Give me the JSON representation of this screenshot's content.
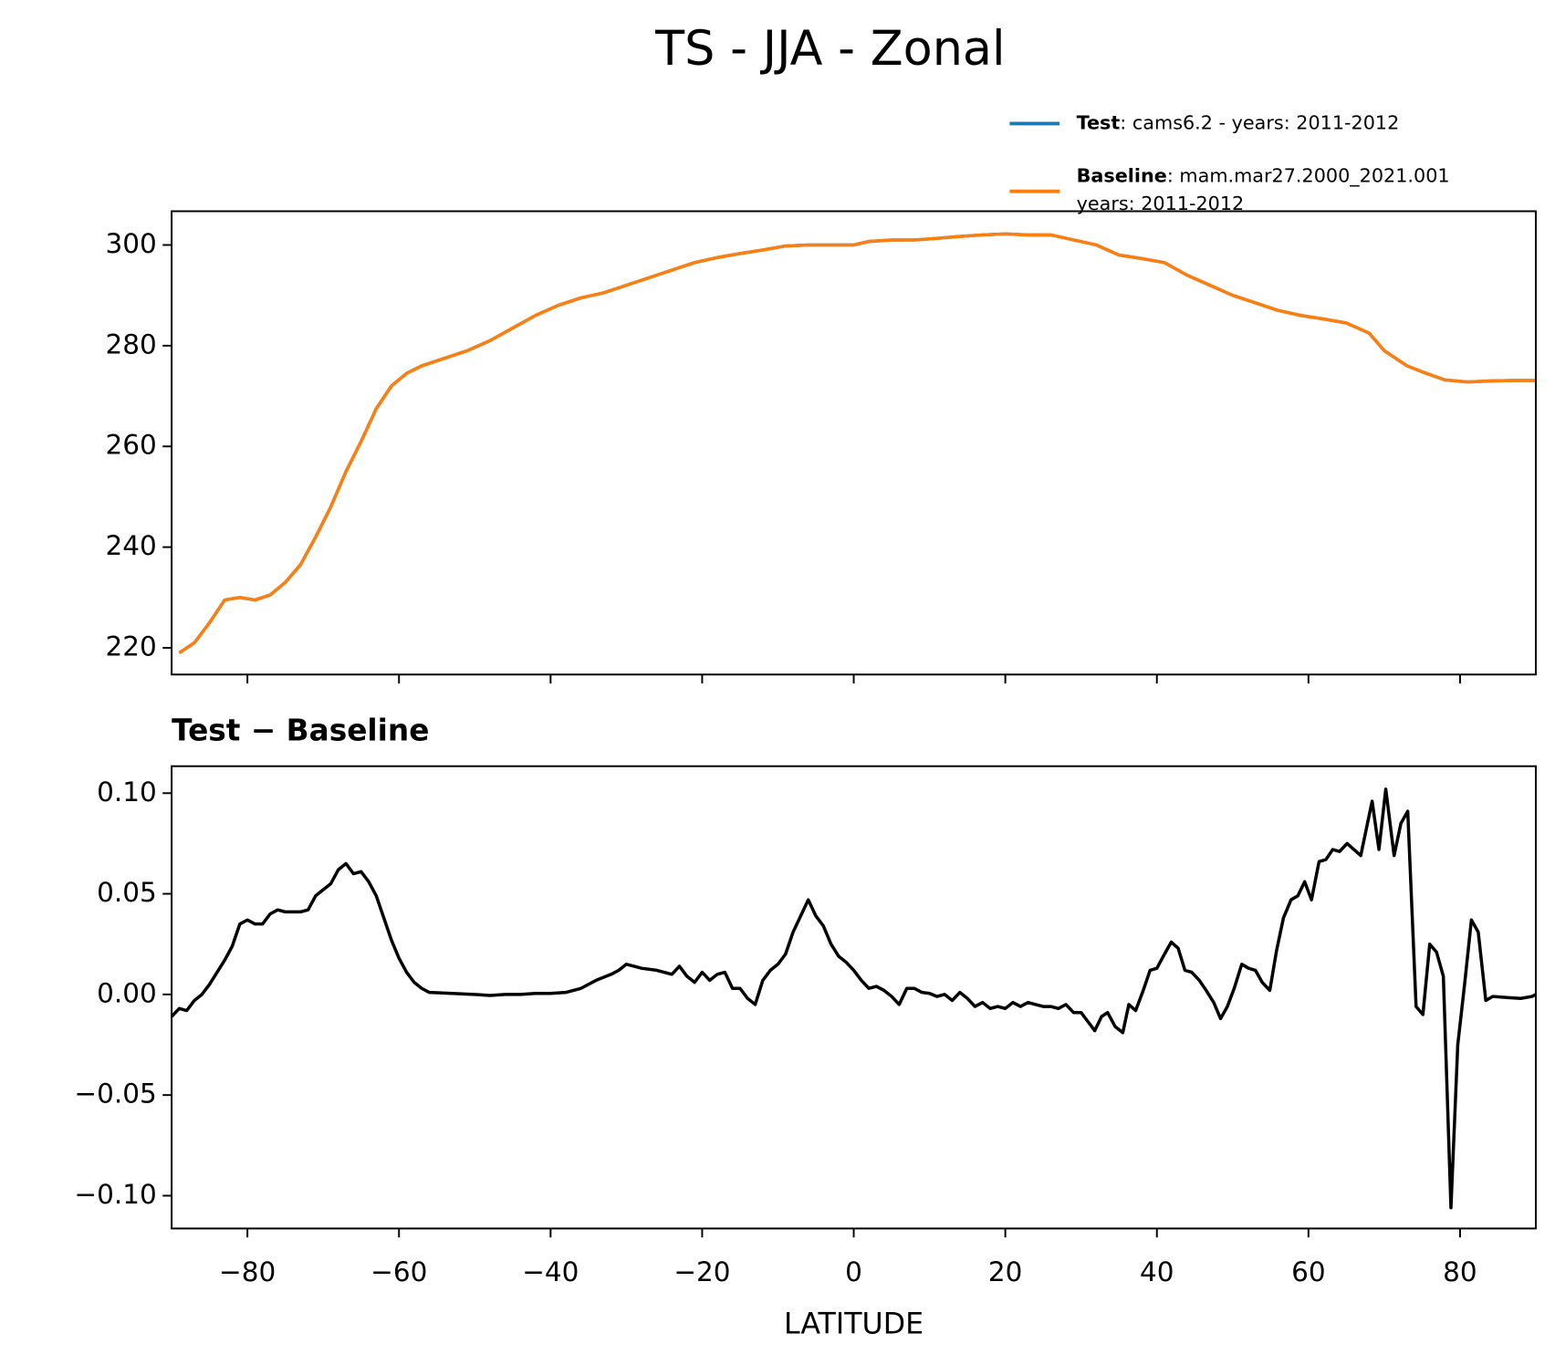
{
  "title": "TS - JJA - Zonal",
  "chart_data": [
    {
      "type": "line",
      "x": [
        -89,
        -87,
        -85,
        -83,
        -81,
        -79,
        -77,
        -75,
        -73,
        -71,
        -69,
        -67,
        -65,
        -63,
        -61,
        -59,
        -57,
        -54,
        -51,
        -48,
        -45,
        -42,
        -39,
        -36,
        -33,
        -30,
        -27,
        -24,
        -21,
        -18,
        -15,
        -12,
        -9,
        -6,
        -3,
        0,
        2,
        5,
        8,
        11,
        14,
        17,
        20,
        23,
        26,
        29,
        32,
        35,
        38,
        41,
        44,
        47,
        50,
        53,
        56,
        59,
        62,
        65,
        68,
        70,
        73,
        75,
        78,
        81,
        84,
        87,
        90
      ],
      "series": [
        {
          "name": "Test",
          "description": [
            ": cams6.2 - years: 2011-2012"
          ],
          "color": "#1f77b4",
          "values": [
            219,
            221,
            225,
            229.5,
            230,
            229.5,
            230.5,
            233,
            236.5,
            242,
            248,
            255,
            261,
            267.5,
            272,
            274.5,
            276,
            277.5,
            279,
            281,
            283.5,
            286,
            288,
            289.5,
            290.5,
            292,
            293.5,
            295,
            296.5,
            297.5,
            298.3,
            299,
            299.8,
            300,
            300,
            300,
            300.7,
            301,
            301,
            301.3,
            301.7,
            302,
            302.2,
            302,
            302,
            301,
            300,
            298,
            297.3,
            296.5,
            294,
            292,
            290,
            288.5,
            287,
            286,
            285.3,
            284.5,
            282.5,
            279,
            276,
            274.8,
            273.2,
            272.8,
            273,
            273.1,
            273.1
          ]
        },
        {
          "name": "Baseline",
          "description": [
            ": mam.mar27.2000_2021.001",
            "years: 2011-2012"
          ],
          "color": "#ff7f0e",
          "values": [
            219,
            221,
            225,
            229.5,
            230,
            229.5,
            230.5,
            233,
            236.5,
            242,
            248,
            255,
            261,
            267.5,
            272,
            274.5,
            276,
            277.5,
            279,
            281,
            283.5,
            286,
            288,
            289.5,
            290.5,
            292,
            293.5,
            295,
            296.5,
            297.5,
            298.3,
            299,
            299.8,
            300,
            300,
            300,
            300.7,
            301,
            301,
            301.3,
            301.7,
            302,
            302.2,
            302,
            302,
            301,
            300,
            298,
            297.3,
            296.5,
            294,
            292,
            290,
            288.5,
            287,
            286,
            285.3,
            284.5,
            282.5,
            279,
            276,
            274.8,
            273.2,
            272.8,
            273,
            273.1,
            273.1
          ]
        }
      ],
      "xlim": [
        -90,
        90
      ],
      "xticks": [
        -80,
        -60,
        -40,
        -20,
        0,
        20,
        40,
        60,
        80
      ],
      "ylim": [
        214.7,
        306.7
      ],
      "yticks": [
        220,
        240,
        260,
        280,
        300
      ]
    },
    {
      "type": "line",
      "title": "Test − Baseline",
      "xlabel": "LATITUDE",
      "x": [
        -90,
        -89,
        -88,
        -87,
        -86,
        -85,
        -84,
        -83,
        -82,
        -81,
        -80,
        -79,
        -78,
        -77,
        -76,
        -75,
        -73,
        -72,
        -71,
        -70,
        -69,
        -68,
        -67,
        -66,
        -65,
        -64,
        -63,
        -62,
        -61,
        -60,
        -59,
        -58,
        -57,
        -56,
        -53,
        -50,
        -48,
        -46,
        -44,
        -42,
        -40,
        -38,
        -36,
        -34,
        -32,
        -31,
        -30,
        -29,
        -28,
        -26,
        -24,
        -23,
        -22,
        -21,
        -20,
        -19,
        -18,
        -17,
        -16,
        -15,
        -14,
        -13,
        -12,
        -11,
        -10,
        -9,
        -8,
        -7,
        -6,
        -5,
        -4,
        -3,
        -2,
        -1,
        0,
        1,
        2,
        3,
        4,
        5,
        6,
        7,
        8,
        9,
        10,
        11,
        12,
        13,
        14,
        15,
        16,
        17,
        18,
        19,
        20,
        21,
        22,
        23,
        24,
        25,
        26,
        27,
        28,
        29,
        30,
        31,
        31.8,
        32.7,
        33.5,
        34.5,
        35.5,
        36.3,
        37.2,
        38.2,
        39.1,
        40,
        41,
        41.9,
        42.8,
        43.7,
        44.6,
        45.6,
        46.5,
        47.5,
        48.4,
        49.3,
        50.2,
        51.2,
        52.1,
        53,
        53.9,
        54.9,
        55.8,
        56.7,
        57.7,
        58.6,
        59.5,
        60.4,
        61.4,
        62.3,
        63.2,
        64.1,
        65.1,
        66,
        66.9,
        68.4,
        69.3,
        70.2,
        71.3,
        72.2,
        73.1,
        74.2,
        75.1,
        76,
        76.9,
        77.8,
        78.8,
        79.7,
        80.6,
        81.5,
        82.4,
        83.4,
        84.3,
        86,
        88,
        89.5,
        90
      ],
      "series": [
        {
          "color": "#000000",
          "values": [
            -0.011,
            -0.007,
            -0.008,
            -0.003,
            0,
            0.005,
            0.011,
            0.017,
            0.024,
            0.035,
            0.037,
            0.035,
            0.035,
            0.04,
            0.042,
            0.041,
            0.041,
            0.042,
            0.049,
            0.052,
            0.055,
            0.062,
            0.065,
            0.06,
            0.061,
            0.056,
            0.049,
            0.038,
            0.027,
            0.018,
            0.011,
            0.006,
            0.003,
            0.001,
            0.0005,
            0,
            -0.0005,
            0,
            0,
            0.0005,
            0.0005,
            0.001,
            0.003,
            0.007,
            0.01,
            0.012,
            0.015,
            0.014,
            0.013,
            0.012,
            0.01,
            0.014,
            0.009,
            0.006,
            0.011,
            0.007,
            0.01,
            0.011,
            0.003,
            0.003,
            -0.002,
            -0.005,
            0.007,
            0.012,
            0.015,
            0.02,
            0.031,
            0.039,
            0.047,
            0.039,
            0.034,
            0.025,
            0.019,
            0.016,
            0.012,
            0.007,
            0.003,
            0.004,
            0.002,
            -0.001,
            -0.005,
            0.003,
            0.003,
            0.001,
            0.0005,
            -0.001,
            0,
            -0.003,
            0.001,
            -0.002,
            -0.006,
            -0.004,
            -0.007,
            -0.006,
            -0.007,
            -0.004,
            -0.006,
            -0.004,
            -0.005,
            -0.006,
            -0.006,
            -0.007,
            -0.005,
            -0.009,
            -0.009,
            -0.014,
            -0.018,
            -0.011,
            -0.009,
            -0.016,
            -0.019,
            -0.005,
            -0.008,
            0.002,
            0.012,
            0.013,
            0.02,
            0.026,
            0.023,
            0.012,
            0.011,
            0.007,
            0.002,
            -0.004,
            -0.012,
            -0.006,
            0.003,
            0.015,
            0.013,
            0.012,
            0.006,
            0.002,
            0.022,
            0.038,
            0.047,
            0.049,
            0.056,
            0.047,
            0.066,
            0.067,
            0.072,
            0.071,
            0.075,
            0.072,
            0.069,
            0.096,
            0.072,
            0.102,
            0.069,
            0.085,
            0.091,
            -0.006,
            -0.01,
            0.025,
            0.021,
            0.009,
            -0.106,
            -0.025,
            0.005,
            0.037,
            0.031,
            -0.003,
            -0.001,
            -0.0015,
            -0.002,
            -0.001,
            0
          ]
        }
      ],
      "xlim": [
        -90,
        90
      ],
      "xticks": [
        {
          "value": -80,
          "label": "−80"
        },
        {
          "value": -60,
          "label": "−60"
        },
        {
          "value": -40,
          "label": "−40"
        },
        {
          "value": -20,
          "label": "−20"
        },
        0,
        20,
        40,
        60,
        80
      ],
      "ylim": [
        -0.1163,
        0.1134
      ],
      "yticks": [
        {
          "value": -0.1,
          "label": "−0.10"
        },
        {
          "value": -0.05,
          "label": "−0.05"
        },
        {
          "value": 0,
          "label": "0.00"
        },
        {
          "value": 0.05,
          "label": "0.05"
        },
        {
          "value": 0.1,
          "label": "0.10"
        }
      ]
    }
  ]
}
